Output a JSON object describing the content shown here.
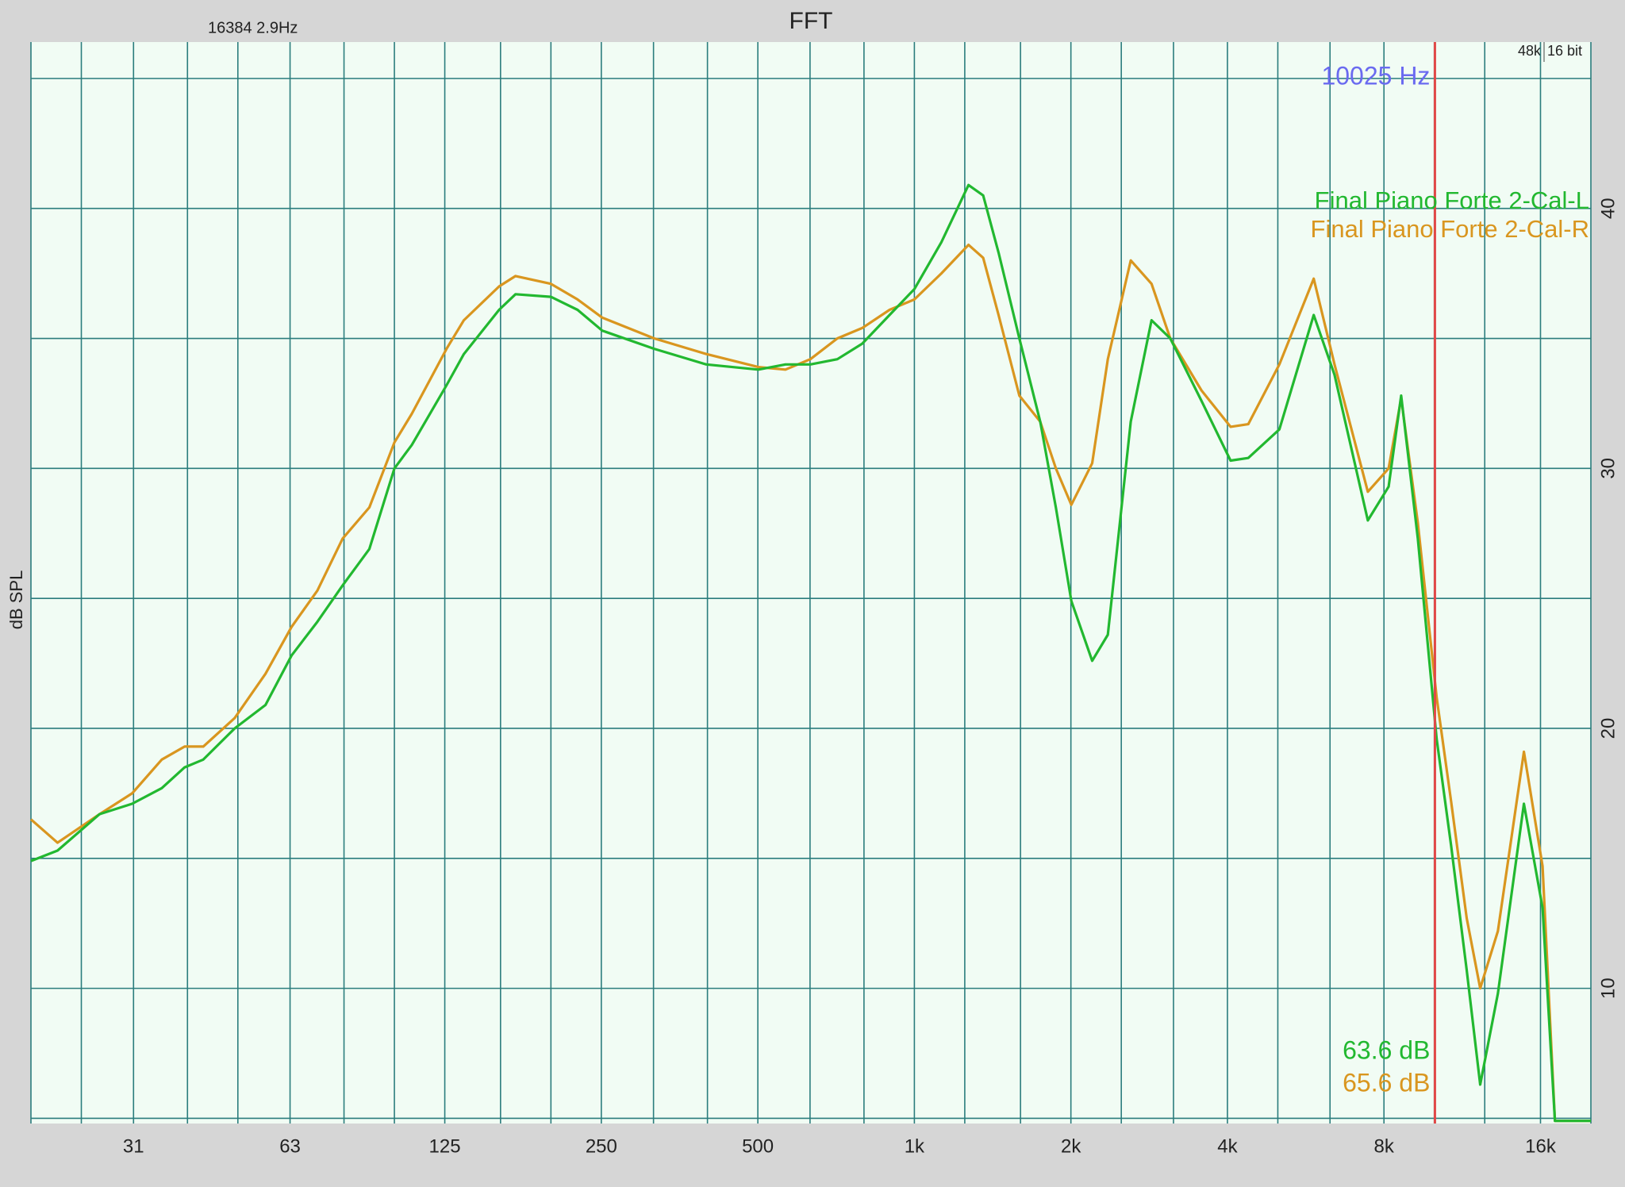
{
  "chart_data": {
    "type": "line",
    "title": "FFT",
    "info": "16384  2.9Hz",
    "sample_rate": "48k",
    "bit_depth": "16 bit",
    "y_label": "dB SPL",
    "x_scale": "log",
    "grid": true,
    "legend_position": "upper right",
    "xlim": [
      20,
      20000
    ],
    "ylim": [
      4.8,
      46.4
    ],
    "xticks": [
      {
        "value": 31.5,
        "label": "31"
      },
      63,
      125,
      250,
      500,
      {
        "value": 1000,
        "label": "1k"
      },
      {
        "value": 2000,
        "label": "2k"
      },
      {
        "value": 4000,
        "label": "4k"
      },
      {
        "value": 8000,
        "label": "8k"
      },
      {
        "value": 16000,
        "label": "16k"
      }
    ],
    "xgrid": [
      20,
      25,
      31.5,
      40,
      50,
      63,
      80,
      100,
      125,
      160,
      200,
      250,
      315,
      400,
      500,
      630,
      800,
      1000,
      1250,
      1600,
      2000,
      2500,
      3150,
      4000,
      5000,
      6300,
      8000,
      10000,
      12500,
      16000,
      20000
    ],
    "yticks": [
      10,
      20,
      30,
      40
    ],
    "ygrid": [
      5,
      10,
      15,
      20,
      25,
      30,
      35,
      40,
      45
    ],
    "cursor": {
      "value": 10025,
      "label": "10025 Hz",
      "color": "#e04848",
      "label_color": "#6a6af0"
    },
    "x": [
      20,
      22.5,
      27.1,
      31.3,
      35.7,
      39.5,
      42.9,
      49.3,
      56.5,
      63.4,
      71.1,
      79.5,
      89.5,
      100,
      108,
      126,
      136,
      159,
      171,
      200,
      225,
      251,
      316,
      398,
      501,
      565,
      631,
      711,
      794,
      896,
      1000,
      1127,
      1271,
      1356,
      1452,
      1592,
      1746,
      1871,
      2004,
      2198,
      2355,
      2607,
      2858,
      3105,
      3565,
      4056,
      4386,
      5035,
      5861,
      6426,
      7448,
      8168,
      8632,
      9293,
      10100,
      10770,
      11540,
      12250,
      13250,
      14870,
      16150,
      17060,
      20000
    ],
    "series": [
      {
        "name": "Final Piano Forte 2-Cal-L",
        "color": "#22b830",
        "readout": "63.6 dB",
        "values": [
          14.9,
          15.3,
          16.7,
          17.1,
          17.7,
          18.5,
          18.8,
          20.0,
          20.9,
          22.8,
          24.1,
          25.5,
          26.9,
          30.0,
          30.9,
          33.2,
          34.4,
          36.1,
          36.7,
          36.6,
          36.1,
          35.3,
          34.6,
          34.0,
          33.8,
          34.0,
          34.0,
          34.2,
          34.8,
          35.9,
          36.9,
          38.7,
          40.9,
          40.5,
          38.3,
          35.0,
          31.8,
          28.5,
          24.9,
          22.6,
          23.6,
          31.8,
          35.7,
          35.0,
          32.6,
          30.3,
          30.4,
          31.5,
          35.9,
          33.6,
          28.0,
          29.3,
          32.8,
          27.3,
          19.6,
          15.5,
          10.7,
          6.3,
          9.8,
          17.1,
          13.1,
          4.9,
          4.9
        ]
      },
      {
        "name": "Final Piano Forte 2-Cal-R",
        "color": "#d9961f",
        "readout": "65.6 dB",
        "values": [
          16.5,
          15.6,
          16.7,
          17.5,
          18.8,
          19.3,
          19.3,
          20.4,
          22.1,
          23.9,
          25.3,
          27.3,
          28.5,
          31.0,
          32.1,
          34.6,
          35.7,
          37.0,
          37.4,
          37.1,
          36.5,
          35.8,
          35.0,
          34.4,
          33.9,
          33.8,
          34.2,
          35.0,
          35.4,
          36.1,
          36.5,
          37.5,
          38.6,
          38.1,
          35.9,
          32.8,
          31.8,
          30.0,
          28.6,
          30.2,
          34.2,
          38.0,
          37.1,
          35.0,
          33.0,
          31.6,
          31.7,
          34.0,
          37.3,
          34.0,
          29.1,
          30.0,
          32.7,
          27.9,
          21.2,
          17.2,
          12.7,
          10.0,
          12.2,
          19.1,
          14.7,
          4.9,
          4.9
        ]
      }
    ]
  }
}
